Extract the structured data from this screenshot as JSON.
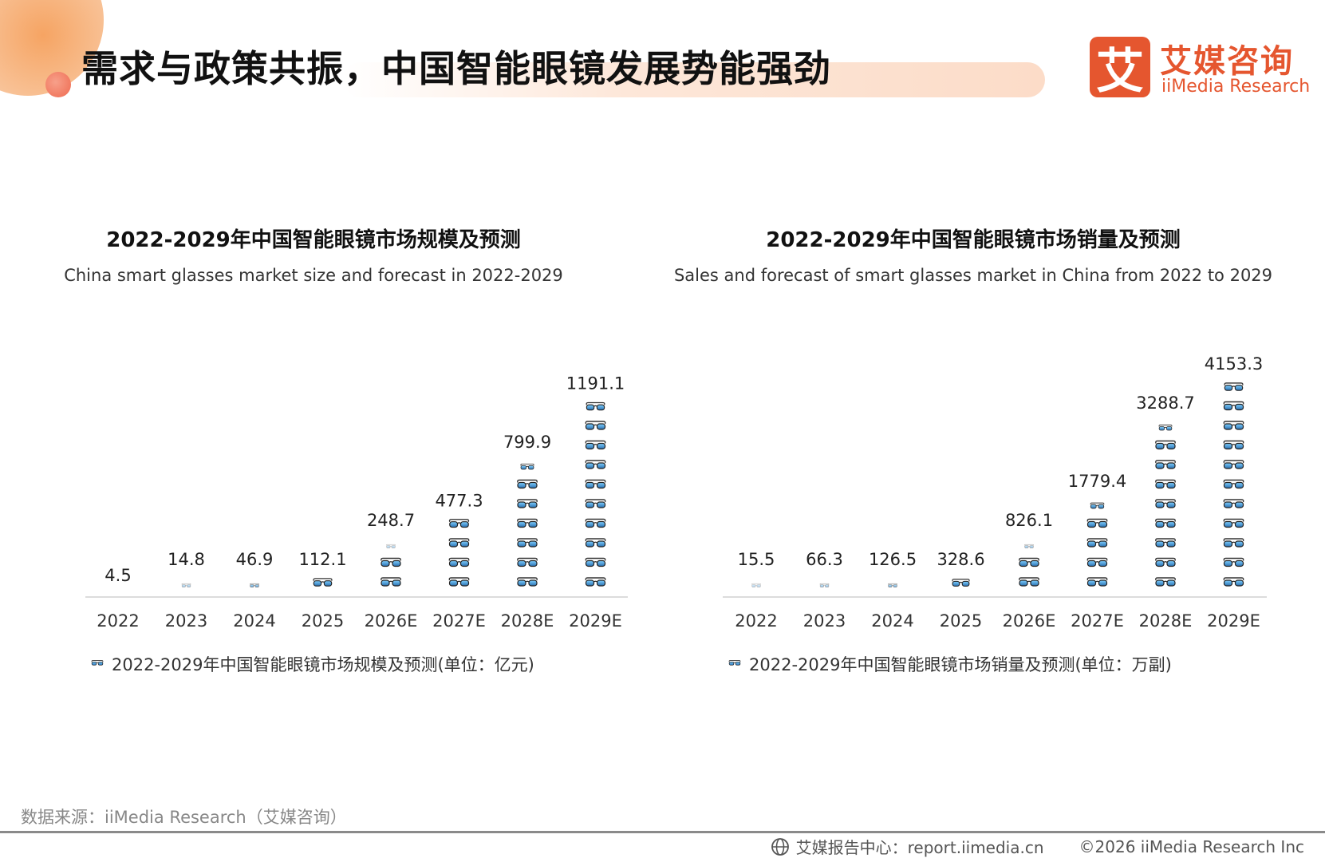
{
  "page": {
    "title": "需求与政策共振，中国智能眼镜发展势能强劲",
    "brand_color": "#e5562f",
    "accent_bar_color": "#fcdcc8"
  },
  "logo": {
    "mark": "艾",
    "name_cn": "艾媒咨询",
    "name_en": "iiMedia Research"
  },
  "source_note": "数据来源：iiMedia Research（艾媒咨询）",
  "footer": {
    "center_label": "艾媒报告中心：report.iimedia.cn",
    "copyright": "©2026  iiMedia Research  Inc"
  },
  "chart_data": [
    {
      "type": "bar",
      "style": "pictogram-glasses",
      "title": "2022-2029年中国智能眼镜市场规模及预测",
      "subtitle": "China smart glasses market size and forecast in 2022-2029",
      "categories": [
        "2022",
        "2023",
        "2024",
        "2025",
        "2026E",
        "2027E",
        "2028E",
        "2029E"
      ],
      "series": [
        {
          "name": "2022-2029年中国智能眼镜市场规模及预测(单位：亿元)",
          "values": [
            4.5,
            14.8,
            46.9,
            112.1,
            248.7,
            477.3,
            799.9,
            1191.1
          ],
          "labels": [
            "4.5",
            "14.8",
            "46.9",
            "112.1",
            "248.7",
            "477.3",
            "799.9",
            "1191.1"
          ]
        }
      ],
      "unit_per_icon": 120,
      "legend_position": "bottom",
      "grid": false
    },
    {
      "type": "bar",
      "style": "pictogram-glasses",
      "title": "2022-2029年中国智能眼镜市场销量及预测",
      "subtitle": "Sales and forecast of smart glasses market in China from 2022 to 2029",
      "categories": [
        "2022",
        "2023",
        "2024",
        "2025",
        "2026E",
        "2027E",
        "2028E",
        "2029E"
      ],
      "series": [
        {
          "name": "2022-2029年中国智能眼镜市场销量及预测(单位：万副)",
          "values": [
            15.5,
            66.3,
            126.5,
            328.6,
            826.1,
            1779.4,
            3288.7,
            4153.3
          ],
          "labels": [
            "15.5",
            "66.3",
            "126.5",
            "328.6",
            "826.1",
            "1779.4",
            "3288.7",
            "4153.3"
          ]
        }
      ],
      "unit_per_icon": 380,
      "legend_position": "bottom",
      "grid": false
    }
  ]
}
